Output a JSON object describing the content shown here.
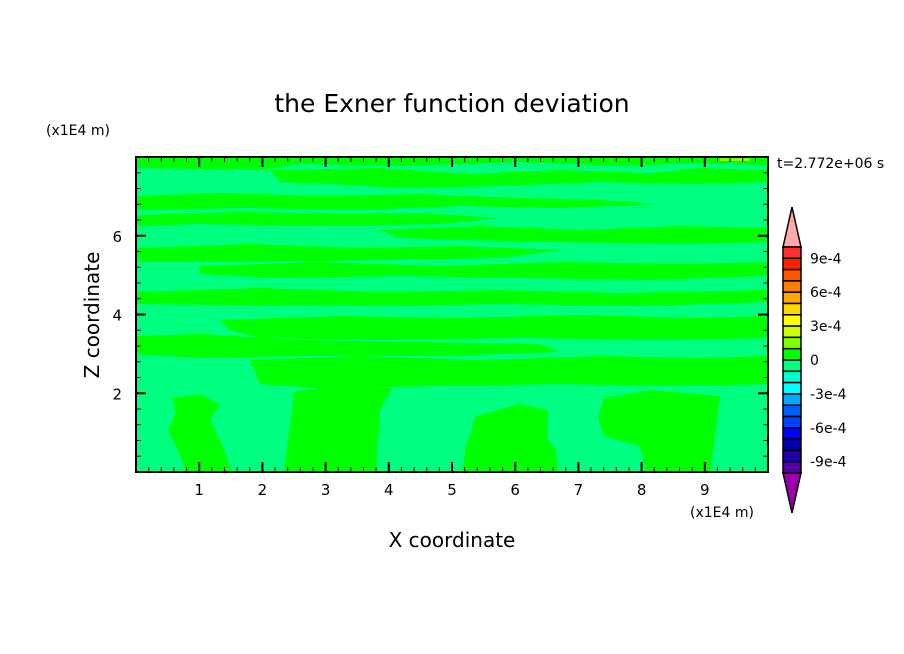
{
  "chart_data": {
    "type": "heatmap",
    "subtype": "filled-contour",
    "title": "the Exner function deviation",
    "xlabel": "X coordinate",
    "ylabel": "Z coordinate",
    "x_unit": "(x1E4 m)",
    "y_unit": "(x1E4 m)",
    "time_label": "t=2.772e+06 s",
    "xlim": [
      0,
      10
    ],
    "ylim": [
      0,
      8
    ],
    "x_ticks": [
      "1",
      "2",
      "3",
      "4",
      "5",
      "6",
      "7",
      "8",
      "9"
    ],
    "y_ticks": [
      "2",
      "4",
      "6"
    ],
    "colorbar": {
      "levels_min": -0.001,
      "levels_max": 0.001,
      "step": 0.0001,
      "tick_labels": [
        "9e-4",
        "6e-4",
        "3e-4",
        "0",
        "-3e-4",
        "-6e-4",
        "-9e-4"
      ],
      "colors_top_to_bottom": [
        "#ff3030",
        "#ff2000",
        "#ff5500",
        "#ff7f00",
        "#ffaa00",
        "#ffd700",
        "#ffff00",
        "#ccff00",
        "#80ff00",
        "#00ff00",
        "#00ff80",
        "#00ffcc",
        "#00ffff",
        "#00aaff",
        "#0060ff",
        "#0040ff",
        "#0000ff",
        "#0000aa",
        "#2000aa",
        "#5000a0"
      ],
      "over_color": "#ffaaaa",
      "under_color": "#9900aa",
      "extend": "both"
    },
    "field_description_levels": {
      "dominant_negative_band": "-1e-4 to 0",
      "dominant_positive_band": "0 to 1e-4"
    }
  }
}
